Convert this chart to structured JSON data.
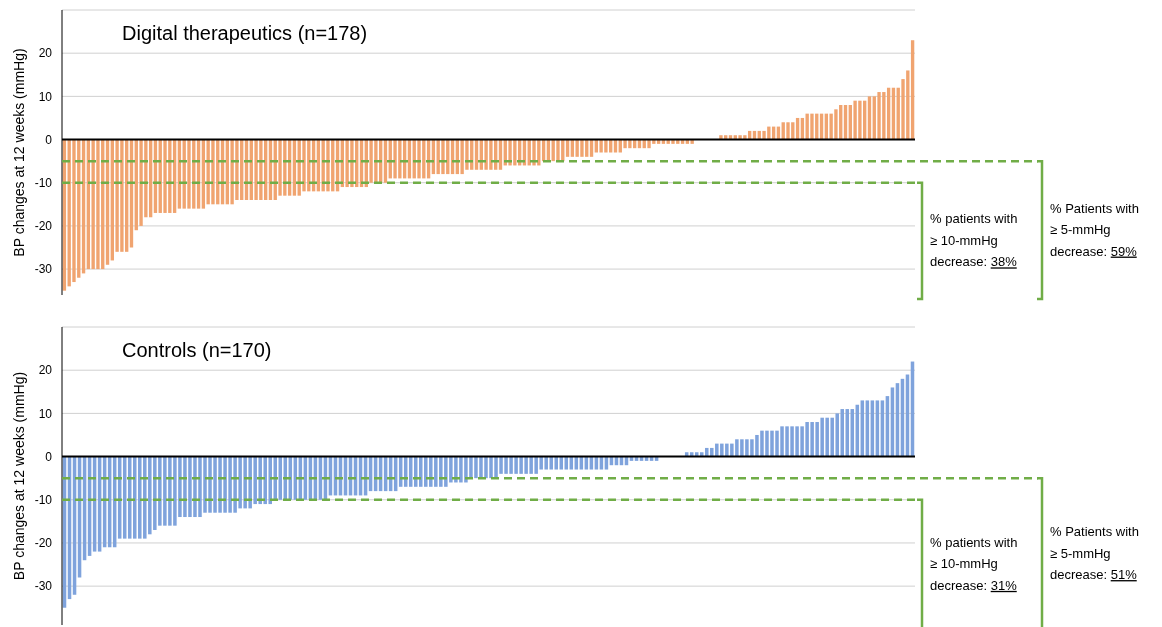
{
  "chart_data": [
    {
      "type": "bar",
      "title": "Digital therapeutics (n=178)",
      "ylabel": "BP changes at 12 weeks (mmHg)",
      "color": "#f0a470",
      "categories": [
        null,
        null,
        null,
        null,
        null,
        null,
        null,
        null,
        null,
        null,
        null,
        null,
        null,
        null,
        null,
        null,
        null,
        null,
        null,
        null,
        null,
        null,
        null,
        null,
        null,
        null,
        null,
        null,
        null,
        null,
        null,
        null,
        null,
        null,
        null,
        null,
        null,
        null,
        null,
        null,
        null,
        null,
        null,
        null,
        null,
        null,
        null,
        null,
        null,
        null,
        null,
        null,
        null,
        null,
        null,
        null,
        null,
        null,
        null,
        null,
        null,
        null,
        null,
        null,
        null,
        null,
        null,
        null,
        null,
        null,
        null,
        null,
        null,
        null,
        null,
        null,
        null,
        null,
        null,
        null,
        null,
        null,
        null,
        null,
        null,
        null,
        null,
        null,
        null,
        null,
        null,
        null,
        null,
        null,
        null,
        null,
        null,
        null,
        null,
        null,
        null,
        null,
        null,
        null,
        null,
        null,
        null,
        null,
        null,
        null,
        null,
        null,
        null,
        null,
        null,
        null,
        null,
        null,
        null,
        null,
        null,
        null,
        null,
        null,
        null,
        null,
        null,
        null,
        null,
        null,
        null,
        null,
        null,
        null,
        null,
        null,
        null,
        null,
        null,
        null,
        null,
        null,
        null,
        null,
        null,
        null,
        null,
        null,
        null,
        null,
        null,
        null,
        null,
        null,
        null,
        null,
        null,
        null,
        null,
        null,
        null,
        null,
        null,
        null,
        null,
        null,
        null,
        null,
        null,
        null,
        null,
        null,
        null,
        null,
        null,
        null,
        null,
        null
      ],
      "values": [
        -35,
        -34,
        -33,
        -32,
        -31,
        -30,
        -30,
        -30,
        -30,
        -29,
        -28,
        -26,
        -26,
        -26,
        -25,
        -21,
        -20,
        -18,
        -18,
        -17,
        -17,
        -17,
        -17,
        -17,
        -16,
        -16,
        -16,
        -16,
        -16,
        -16,
        -15,
        -15,
        -15,
        -15,
        -15,
        -15,
        -14,
        -14,
        -14,
        -14,
        -14,
        -14,
        -14,
        -14,
        -14,
        -13,
        -13,
        -13,
        -13,
        -13,
        -12,
        -12,
        -12,
        -12,
        -12,
        -12,
        -12,
        -12,
        -11,
        -11,
        -11,
        -11,
        -11,
        -11,
        -10,
        -10,
        -10,
        -10,
        -9,
        -9,
        -9,
        -9,
        -9,
        -9,
        -9,
        -9,
        -9,
        -8,
        -8,
        -8,
        -8,
        -8,
        -8,
        -8,
        -7,
        -7,
        -7,
        -7,
        -7,
        -7,
        -7,
        -7,
        -6,
        -6,
        -6,
        -6,
        -6,
        -6,
        -6,
        -6,
        -5,
        -5,
        -5,
        -5,
        -5,
        -4,
        -4,
        -4,
        -4,
        -4,
        -4,
        -3,
        -3,
        -3,
        -3,
        -3,
        -3,
        -2,
        -2,
        -2,
        -2,
        -2,
        -2,
        -1,
        -1,
        -1,
        -1,
        -1,
        -1,
        -1,
        -1,
        -1,
        0,
        0,
        0,
        0,
        0,
        1,
        1,
        1,
        1,
        1,
        1,
        2,
        2,
        2,
        2,
        3,
        3,
        3,
        4,
        4,
        4,
        5,
        5,
        6,
        6,
        6,
        6,
        6,
        6,
        7,
        8,
        8,
        8,
        9,
        9,
        9,
        10,
        10,
        11,
        11,
        12,
        12,
        12,
        14,
        16,
        23
      ],
      "ylim": [
        -36,
        30
      ],
      "yticks": [
        -30,
        -20,
        -10,
        0,
        10,
        20,
        {
          "value": 30,
          "label": null
        }
      ],
      "grid": "y",
      "tick_labels": "y",
      "annotations": [
        "% Patients with ≥ 5-mmHg decrease: 59%",
        "% patients with ≥ 10-mmHg decrease: 38%"
      ],
      "ref_lines": [
        {
          "axis": "y",
          "value": -5,
          "color": "#70ad47",
          "line_style": "dashed"
        },
        {
          "axis": "y",
          "value": -10,
          "color": "#70ad47",
          "line_style": "dashed"
        }
      ]
    },
    {
      "type": "bar",
      "title": "Controls (n=170)",
      "ylabel": "BP changes at 12 weeks (mmHg)",
      "color": "#7fa3dc",
      "categories": [
        null,
        null,
        null,
        null,
        null,
        null,
        null,
        null,
        null,
        null,
        null,
        null,
        null,
        null,
        null,
        null,
        null,
        null,
        null,
        null,
        null,
        null,
        null,
        null,
        null,
        null,
        null,
        null,
        null,
        null,
        null,
        null,
        null,
        null,
        null,
        null,
        null,
        null,
        null,
        null,
        null,
        null,
        null,
        null,
        null,
        null,
        null,
        null,
        null,
        null,
        null,
        null,
        null,
        null,
        null,
        null,
        null,
        null,
        null,
        null,
        null,
        null,
        null,
        null,
        null,
        null,
        null,
        null,
        null,
        null,
        null,
        null,
        null,
        null,
        null,
        null,
        null,
        null,
        null,
        null,
        null,
        null,
        null,
        null,
        null,
        null,
        null,
        null,
        null,
        null,
        null,
        null,
        null,
        null,
        null,
        null,
        null,
        null,
        null,
        null,
        null,
        null,
        null,
        null,
        null,
        null,
        null,
        null,
        null,
        null,
        null,
        null,
        null,
        null,
        null,
        null,
        null,
        null,
        null,
        null,
        null,
        null,
        null,
        null,
        null,
        null,
        null,
        null,
        null,
        null,
        null,
        null,
        null,
        null,
        null,
        null,
        null,
        null,
        null,
        null,
        null,
        null,
        null,
        null,
        null,
        null,
        null,
        null,
        null,
        null,
        null,
        null,
        null,
        null,
        null,
        null,
        null,
        null,
        null,
        null,
        null,
        null,
        null,
        null,
        null,
        null,
        null,
        null,
        null,
        null
      ],
      "values": [
        -35,
        -33,
        -32,
        -28,
        -24,
        -23,
        -22,
        -22,
        -21,
        -21,
        -21,
        -19,
        -19,
        -19,
        -19,
        -19,
        -19,
        -18,
        -17,
        -16,
        -16,
        -16,
        -16,
        -14,
        -14,
        -14,
        -14,
        -14,
        -13,
        -13,
        -13,
        -13,
        -13,
        -13,
        -13,
        -12,
        -12,
        -12,
        -11,
        -11,
        -11,
        -11,
        -10,
        -10,
        -10,
        -10,
        -10,
        -10,
        -10,
        -10,
        -10,
        -10,
        -10,
        -9,
        -9,
        -9,
        -9,
        -9,
        -9,
        -9,
        -9,
        -8,
        -8,
        -8,
        -8,
        -8,
        -8,
        -7,
        -7,
        -7,
        -7,
        -7,
        -7,
        -7,
        -7,
        -7,
        -7,
        -6,
        -6,
        -6,
        -6,
        -5,
        -5,
        -5,
        -5,
        -5,
        -5,
        -4,
        -4,
        -4,
        -4,
        -4,
        -4,
        -4,
        -4,
        -3,
        -3,
        -3,
        -3,
        -3,
        -3,
        -3,
        -3,
        -3,
        -3,
        -3,
        -3,
        -3,
        -3,
        -2,
        -2,
        -2,
        -2,
        -1,
        -1,
        -1,
        -1,
        -1,
        -1,
        0,
        0,
        0,
        0,
        0,
        1,
        1,
        1,
        1,
        2,
        2,
        3,
        3,
        3,
        3,
        4,
        4,
        4,
        4,
        5,
        6,
        6,
        6,
        6,
        7,
        7,
        7,
        7,
        7,
        8,
        8,
        8,
        9,
        9,
        9,
        10,
        11,
        11,
        11,
        12,
        13,
        13,
        13,
        13,
        13,
        14,
        16,
        17,
        18,
        19,
        22
      ],
      "ylim": [
        -39,
        30
      ],
      "yticks": [
        -30,
        -20,
        -10,
        0,
        10,
        20,
        {
          "value": 30,
          "label": null
        }
      ],
      "grid": "y",
      "tick_labels": "y",
      "annotations": [
        "% Patients with ≥ 5-mmHg decrease: 51%",
        "% patients with ≥ 10-mmHg decrease: 31%"
      ],
      "ref_lines": [
        {
          "axis": "y",
          "value": -5,
          "color": "#70ad47",
          "line_style": "dashed"
        },
        {
          "axis": "y",
          "value": -10,
          "color": "#70ad47",
          "line_style": "dashed"
        }
      ]
    }
  ]
}
